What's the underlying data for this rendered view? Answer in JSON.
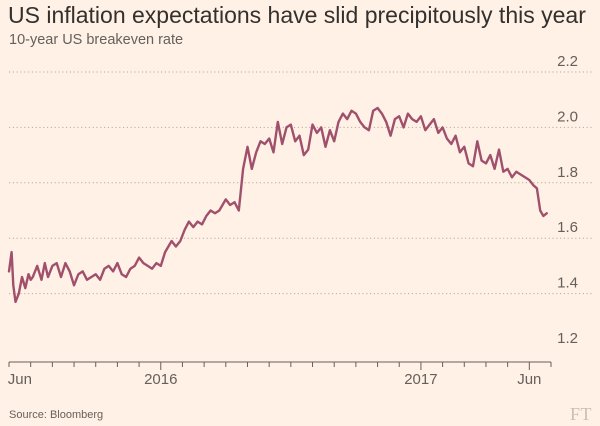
{
  "chart_data": {
    "type": "line",
    "title": "US inflation expectations have slid precipitously this year",
    "subtitle": "10-year US breakeven rate",
    "xlabel": "",
    "ylabel": "",
    "ylim": [
      1.2,
      2.2
    ],
    "yticks": [
      "2.2",
      "2.0",
      "1.8",
      "1.6",
      "1.4",
      "1.2"
    ],
    "ytick_values": [
      2.2,
      2.0,
      1.8,
      1.6,
      1.4,
      1.2
    ],
    "xticks": [
      "Jun",
      "2016",
      "2017",
      "Jun"
    ],
    "xtick_positions": [
      0.5,
      7.0,
      19.0,
      24.0
    ],
    "x_unit": "months since 2015-05",
    "xlim": [
      0.0,
      25.0
    ],
    "grid": "horizontal dotted",
    "line_color": "#a0506c",
    "series": [
      {
        "name": "10-year US breakeven rate",
        "x": [
          0.0,
          0.12,
          0.2,
          0.3,
          0.45,
          0.6,
          0.75,
          0.9,
          1.0,
          1.1,
          1.3,
          1.5,
          1.65,
          1.8,
          2.0,
          2.2,
          2.4,
          2.6,
          2.8,
          3.0,
          3.2,
          3.4,
          3.6,
          3.8,
          4.0,
          4.2,
          4.4,
          4.6,
          4.8,
          5.0,
          5.2,
          5.4,
          5.6,
          5.8,
          6.0,
          6.2,
          6.4,
          6.6,
          6.8,
          7.0,
          7.2,
          7.5,
          7.7,
          7.9,
          8.1,
          8.3,
          8.5,
          8.7,
          8.9,
          9.1,
          9.3,
          9.5,
          9.7,
          9.85,
          10.0,
          10.2,
          10.4,
          10.6,
          10.8,
          11.0,
          11.2,
          11.4,
          11.6,
          11.8,
          12.0,
          12.2,
          12.4,
          12.6,
          12.8,
          13.0,
          13.2,
          13.4,
          13.6,
          13.8,
          14.0,
          14.2,
          14.4,
          14.6,
          14.8,
          15.0,
          15.2,
          15.4,
          15.6,
          15.8,
          16.0,
          16.2,
          16.4,
          16.6,
          16.8,
          17.0,
          17.2,
          17.4,
          17.6,
          17.8,
          18.0,
          18.2,
          18.4,
          18.6,
          18.8,
          19.0,
          19.2,
          19.4,
          19.6,
          19.8,
          20.0,
          20.2,
          20.4,
          20.6,
          20.8,
          21.0,
          21.2,
          21.4,
          21.6,
          21.8,
          22.0,
          22.2,
          22.4,
          22.6,
          22.8,
          23.0,
          23.2,
          23.4,
          23.6,
          23.8,
          24.0,
          24.2,
          24.35,
          24.5,
          24.65,
          24.8
        ],
        "values": [
          1.48,
          1.55,
          1.43,
          1.37,
          1.4,
          1.46,
          1.42,
          1.47,
          1.45,
          1.46,
          1.5,
          1.45,
          1.51,
          1.46,
          1.5,
          1.51,
          1.46,
          1.51,
          1.48,
          1.43,
          1.47,
          1.48,
          1.45,
          1.46,
          1.47,
          1.45,
          1.49,
          1.5,
          1.48,
          1.51,
          1.47,
          1.46,
          1.49,
          1.5,
          1.53,
          1.51,
          1.5,
          1.49,
          1.51,
          1.5,
          1.55,
          1.59,
          1.57,
          1.59,
          1.63,
          1.66,
          1.64,
          1.66,
          1.65,
          1.68,
          1.7,
          1.69,
          1.7,
          1.72,
          1.74,
          1.72,
          1.73,
          1.7,
          1.85,
          1.93,
          1.85,
          1.91,
          1.95,
          1.94,
          1.96,
          1.91,
          2.02,
          1.94,
          2.0,
          2.01,
          1.95,
          1.97,
          1.9,
          1.92,
          2.01,
          1.98,
          2.0,
          1.93,
          1.99,
          1.95,
          2.02,
          2.05,
          2.03,
          2.06,
          2.05,
          2.02,
          2.0,
          1.99,
          2.06,
          2.07,
          2.05,
          2.02,
          1.97,
          2.03,
          2.04,
          2.0,
          2.05,
          2.03,
          2.02,
          2.04,
          1.99,
          2.01,
          2.03,
          1.98,
          2.0,
          1.96,
          1.94,
          1.97,
          1.91,
          1.93,
          1.87,
          1.86,
          1.95,
          1.88,
          1.87,
          1.9,
          1.85,
          1.92,
          1.84,
          1.85,
          1.82,
          1.84,
          1.83,
          1.82,
          1.81,
          1.79,
          1.78,
          1.7,
          1.68,
          1.69
        ]
      }
    ]
  },
  "footer": {
    "source": "Source: Bloomberg",
    "logo": "FT"
  }
}
